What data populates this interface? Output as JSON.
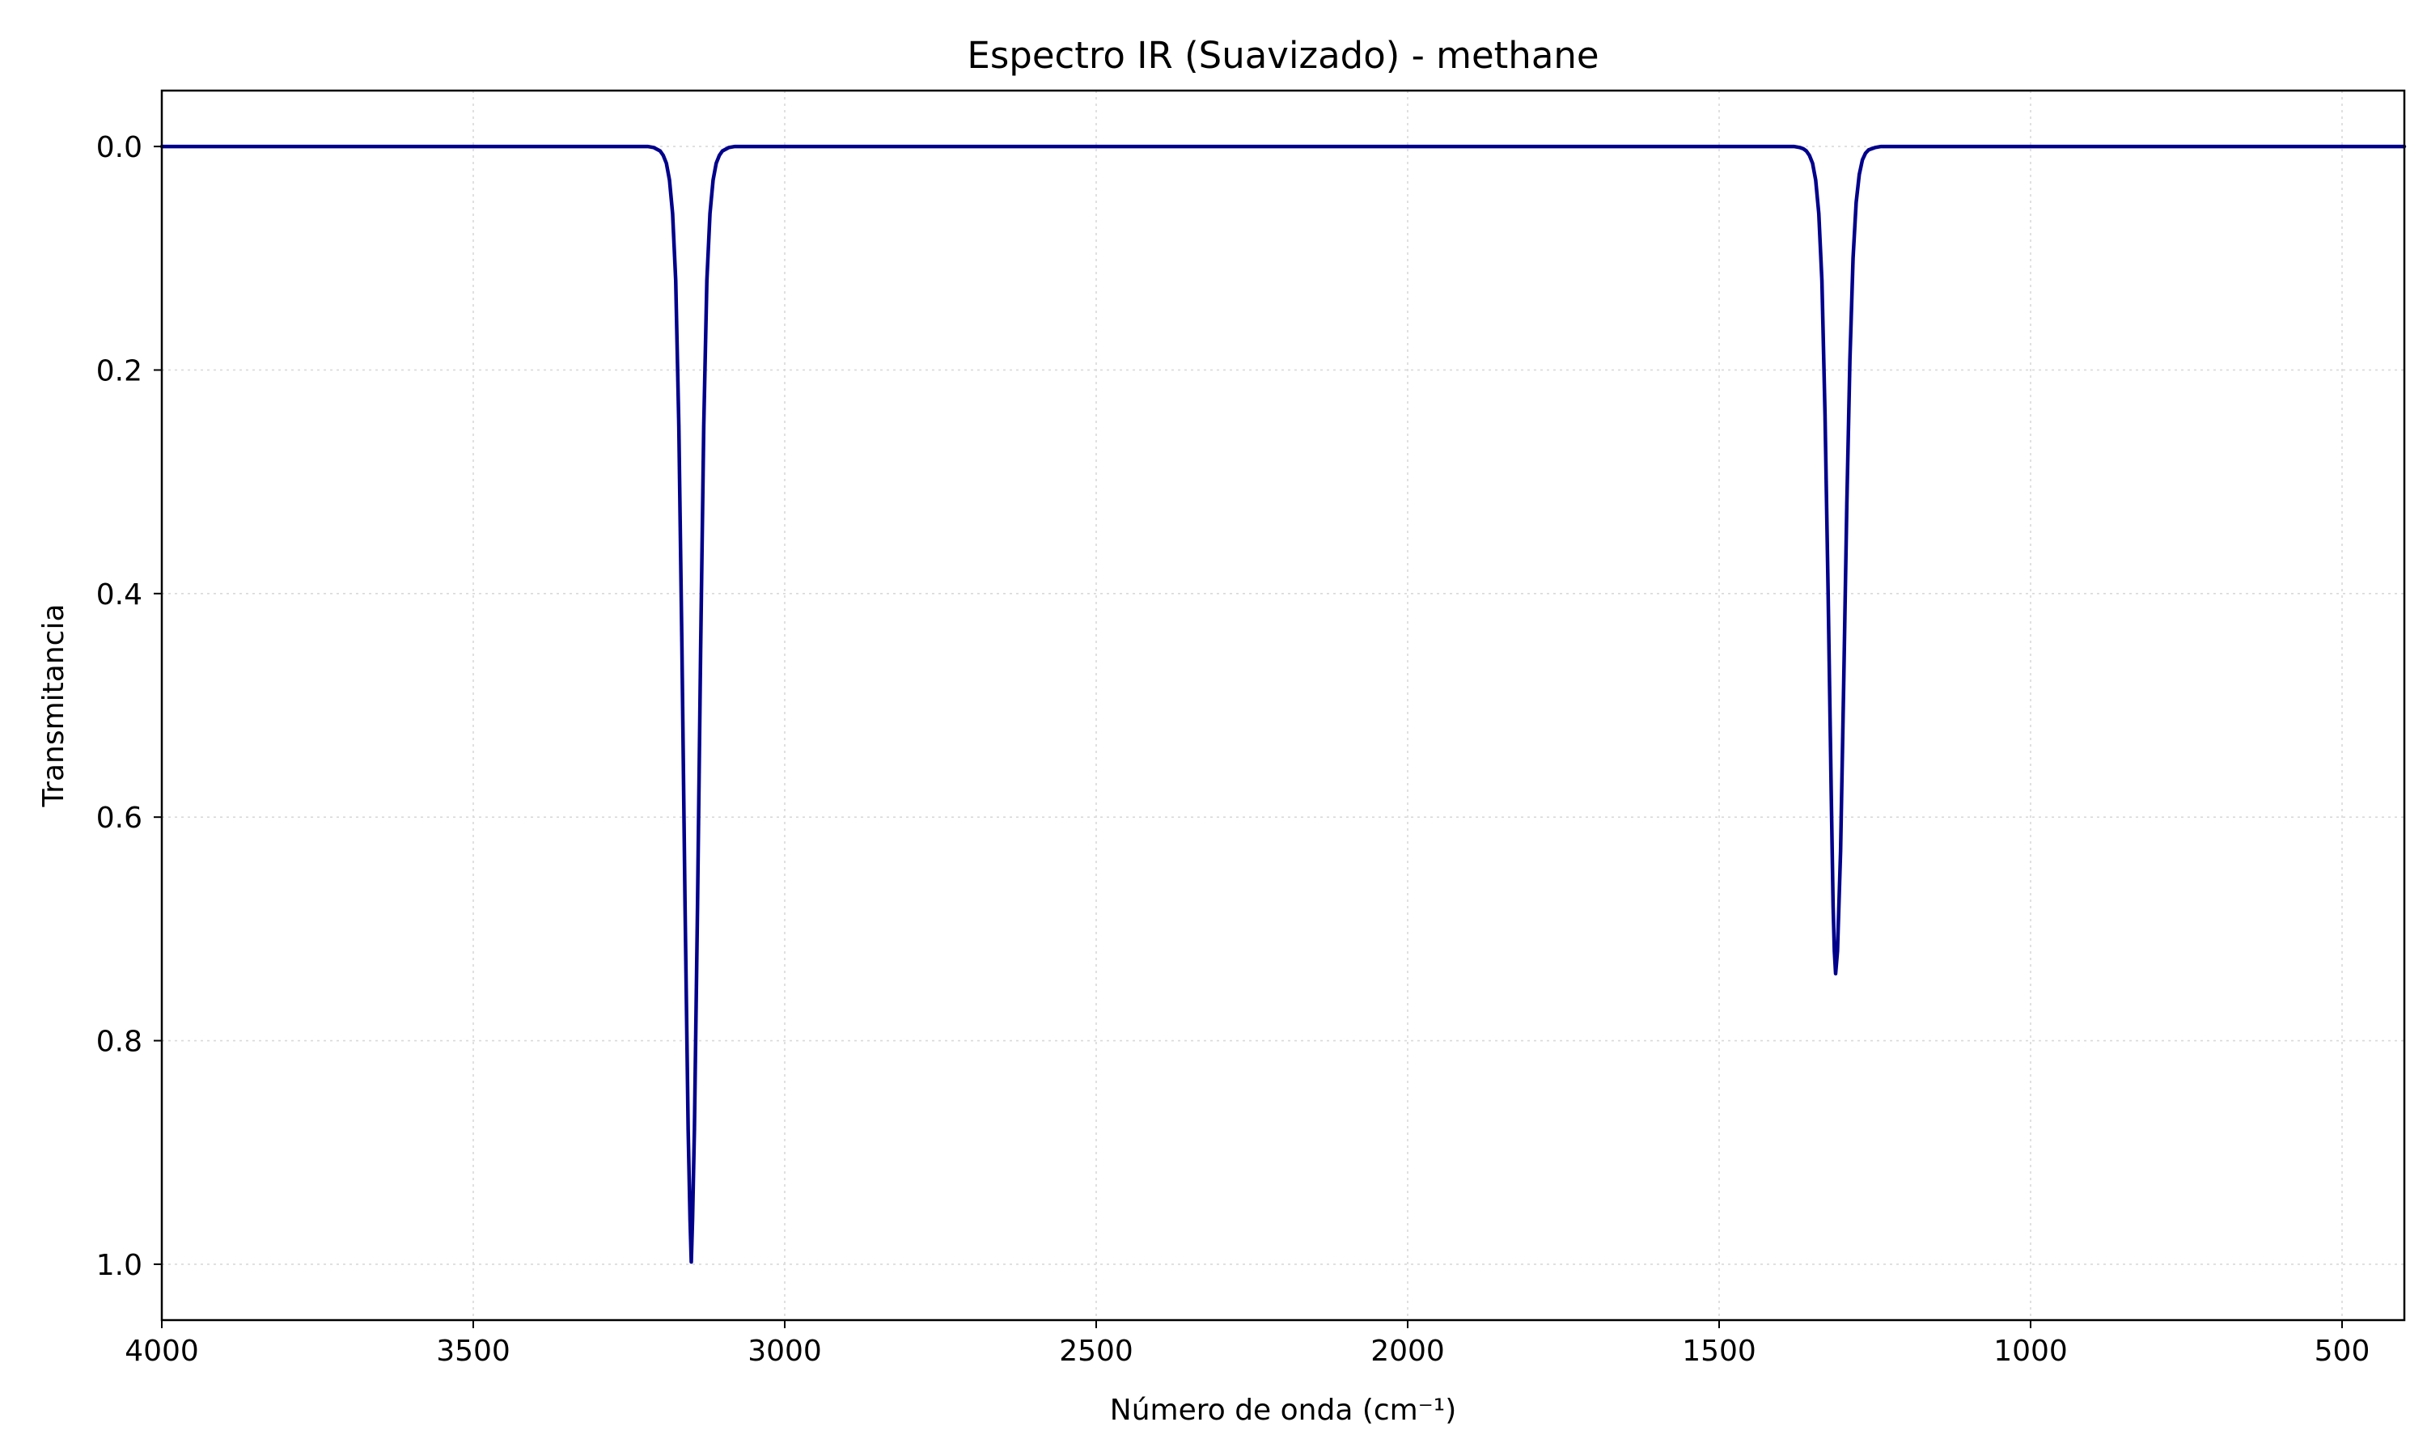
{
  "chart_data": {
    "type": "line",
    "title": "Espectro IR (Suavizado) - methane",
    "xlabel": "Número de onda (cm⁻¹)",
    "ylabel": "Transmitancia",
    "xlim": [
      4000,
      400
    ],
    "ylim": [
      1.05,
      -0.05
    ],
    "x_inverted": true,
    "y_inverted": true,
    "grid": true,
    "line_color": "#00008b",
    "x_ticks": [
      {
        "value": 4000,
        "label": "4000"
      },
      {
        "value": 3500,
        "label": "3500"
      },
      {
        "value": 3000,
        "label": "3000"
      },
      {
        "value": 2500,
        "label": "2500"
      },
      {
        "value": 2000,
        "label": "2000"
      },
      {
        "value": 1500,
        "label": "1500"
      },
      {
        "value": 1000,
        "label": "1000"
      },
      {
        "value": 500,
        "label": "500"
      }
    ],
    "y_ticks": [
      {
        "value": 0.0,
        "label": "0.0"
      },
      {
        "value": 0.2,
        "label": "0.2"
      },
      {
        "value": 0.4,
        "label": "0.4"
      },
      {
        "value": 0.6,
        "label": "0.6"
      },
      {
        "value": 0.8,
        "label": "0.8"
      },
      {
        "value": 1.0,
        "label": "1.0"
      }
    ],
    "series": [
      {
        "x": [
          4000,
          3800,
          3600,
          3400,
          3300,
          3240,
          3220,
          3210,
          3200,
          3195,
          3190,
          3185,
          3180,
          3175,
          3170,
          3165,
          3160,
          3155,
          3152,
          3150,
          3148,
          3145,
          3140,
          3135,
          3130,
          3125,
          3120,
          3115,
          3110,
          3105,
          3100,
          3090,
          3080,
          3060,
          3000,
          2500,
          2000,
          1500,
          1400,
          1380,
          1370,
          1365,
          1360,
          1355,
          1350,
          1345,
          1340,
          1335,
          1330,
          1325,
          1320,
          1317,
          1315,
          1313,
          1310,
          1305,
          1300,
          1295,
          1290,
          1285,
          1280,
          1275,
          1270,
          1265,
          1260,
          1250,
          1240,
          1220,
          1200,
          1000,
          800,
          600,
          400
        ],
        "y": [
          0.0,
          0.0,
          0.0,
          0.0,
          0.0,
          0.0,
          0.0,
          0.001,
          0.004,
          0.008,
          0.015,
          0.03,
          0.06,
          0.12,
          0.25,
          0.45,
          0.68,
          0.88,
          0.96,
          0.998,
          0.96,
          0.88,
          0.68,
          0.45,
          0.25,
          0.12,
          0.06,
          0.03,
          0.015,
          0.008,
          0.004,
          0.001,
          0.0,
          0.0,
          0.0,
          0.0,
          0.0,
          0.0,
          0.0,
          0.0,
          0.001,
          0.002,
          0.004,
          0.008,
          0.015,
          0.03,
          0.06,
          0.12,
          0.24,
          0.4,
          0.58,
          0.68,
          0.72,
          0.74,
          0.72,
          0.63,
          0.48,
          0.32,
          0.19,
          0.1,
          0.05,
          0.025,
          0.012,
          0.006,
          0.003,
          0.001,
          0.0,
          0.0,
          0.0,
          0.0,
          0.0,
          0.0,
          0.0
        ]
      }
    ]
  }
}
